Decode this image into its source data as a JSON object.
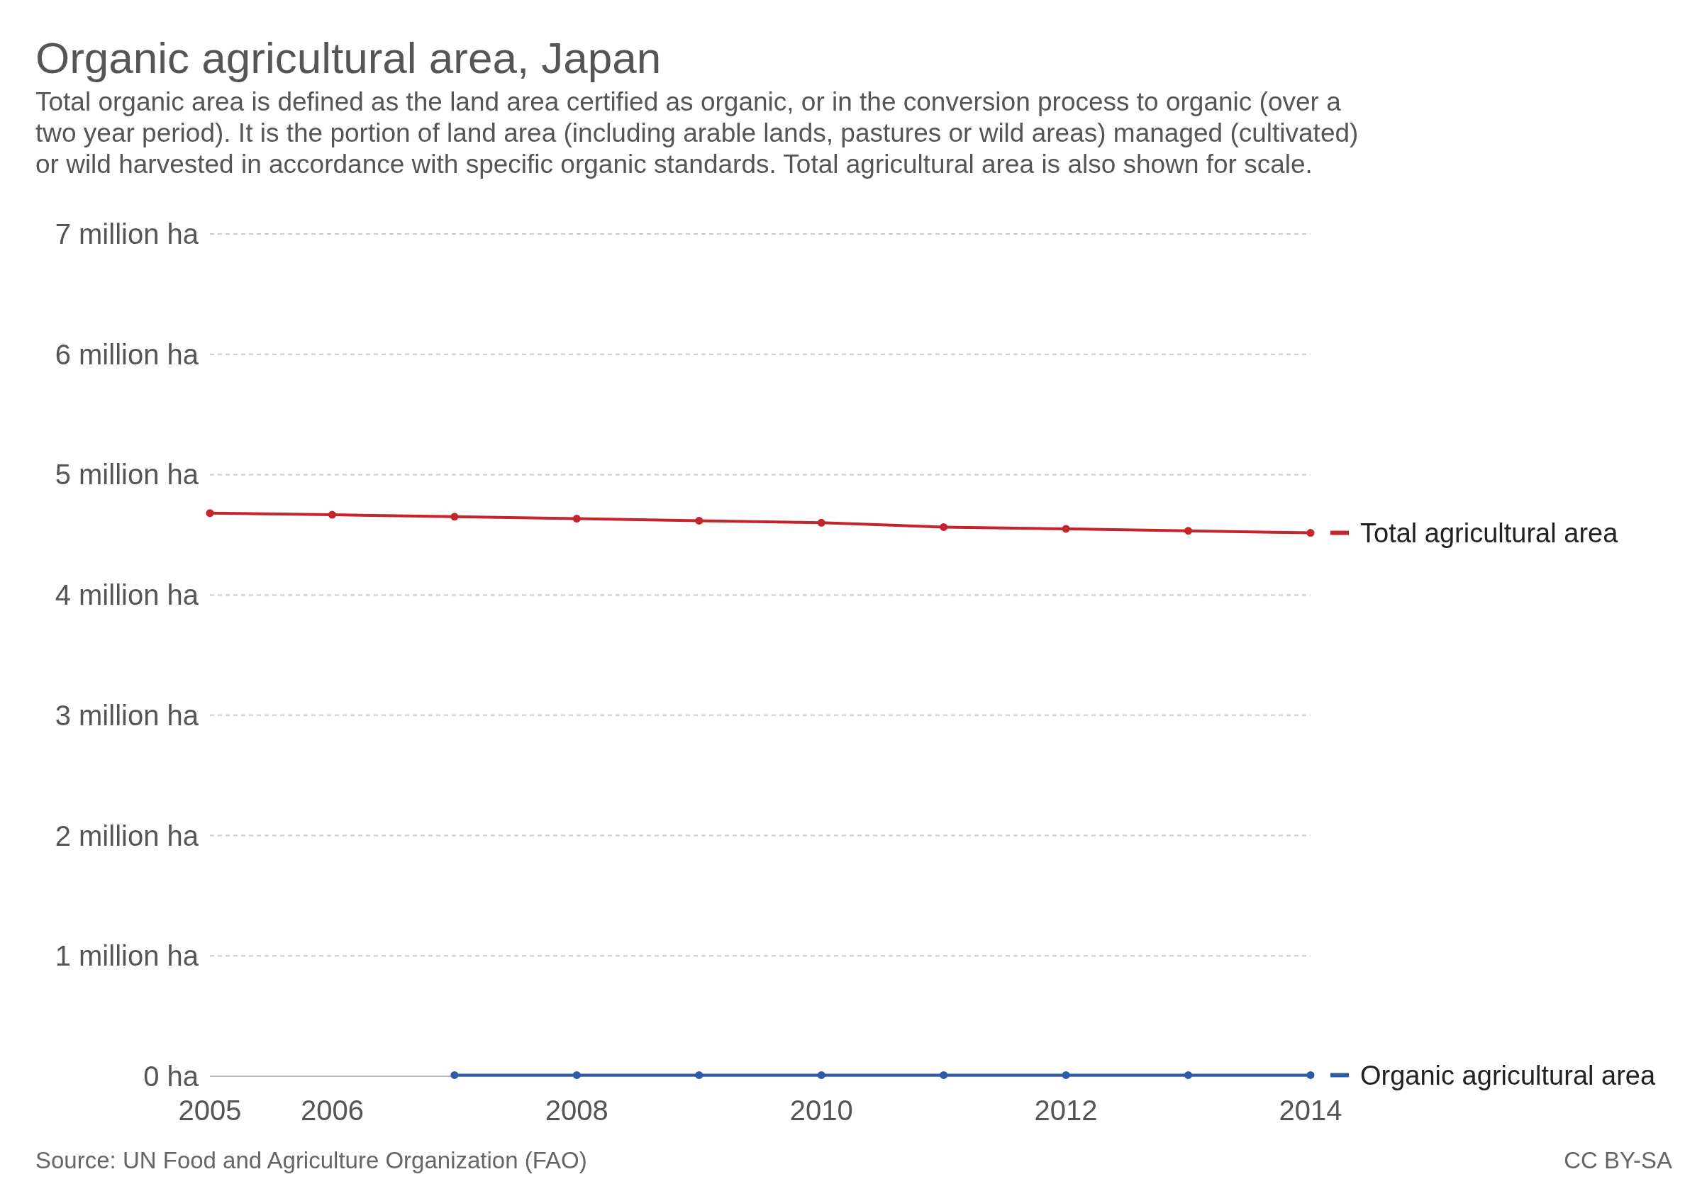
{
  "chart_data": {
    "type": "line",
    "title": "Organic agricultural area, Japan",
    "subtitle": "Total organic area is defined as the land area certified as organic, or in the conversion process to organic (over a two year period). It is the portion of land area (including arable lands, pastures or wild areas) managed (cultivated) or wild harvested in accordance with specific organic standards. Total agricultural area is also shown for scale.",
    "annotations": [
      "Source: UN Food and Agriculture Organization (FAO)",
      "CC BY-SA"
    ],
    "series": [
      {
        "name": "Total agricultural area",
        "color": "#c4242b",
        "x": [
          2005,
          2006,
          2007,
          2008,
          2009,
          2010,
          2011,
          2012,
          2013,
          2014
        ],
        "values": [
          4680000,
          4666000,
          4650000,
          4634000,
          4617000,
          4600000,
          4564000,
          4549000,
          4533000,
          4516000
        ]
      },
      {
        "name": "Organic agricultural area",
        "color": "#2e5aa8",
        "x": [
          2007,
          2008,
          2009,
          2010,
          2011,
          2012,
          2013,
          2014
        ],
        "values": [
          9000,
          9000,
          9000,
          9000,
          9000,
          9000,
          9000,
          9000
        ]
      }
    ],
    "xlim": [
      2005,
      2014
    ],
    "xticks": [
      2005,
      2006,
      2008,
      2010,
      2012,
      2014
    ],
    "ylim": [
      0,
      7000000
    ],
    "yticks": [
      {
        "value": 0,
        "label": "0 ha"
      },
      {
        "value": 1000000,
        "label": "1 million ha"
      },
      {
        "value": 2000000,
        "label": "2 million ha"
      },
      {
        "value": 3000000,
        "label": "3 million ha"
      },
      {
        "value": 4000000,
        "label": "4 million ha"
      },
      {
        "value": 5000000,
        "label": "5 million ha"
      },
      {
        "value": 6000000,
        "label": "6 million ha"
      },
      {
        "value": 7000000,
        "label": "7 million ha"
      }
    ],
    "grid": "y",
    "legend": "right",
    "marker": "circle",
    "line_style": "solid"
  }
}
